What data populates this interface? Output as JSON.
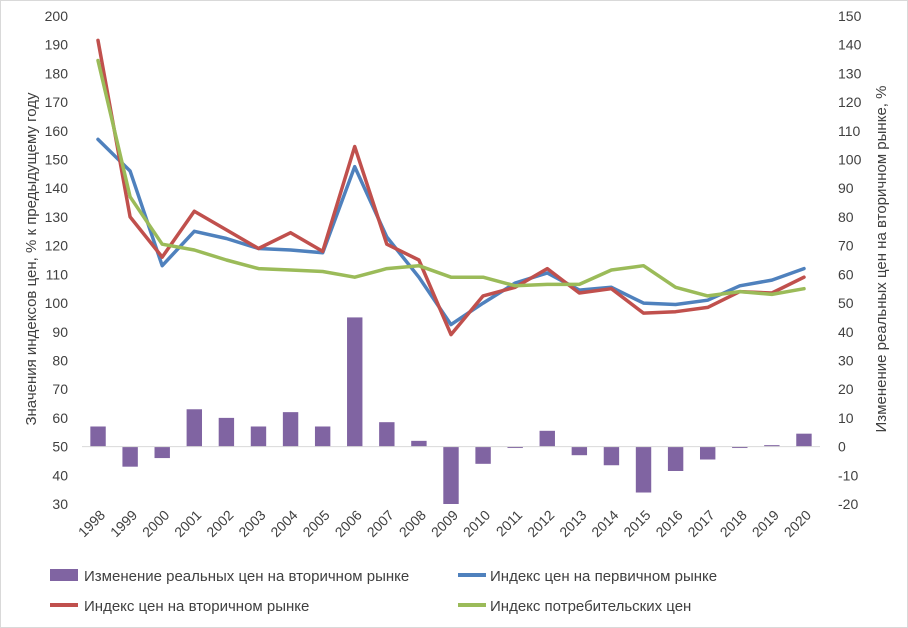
{
  "chart_data": {
    "type": "bar+line",
    "title": "",
    "x": [
      "1998",
      "1999",
      "2000",
      "2001",
      "2002",
      "2003",
      "2004",
      "2005",
      "2006",
      "2007",
      "2008",
      "2009",
      "2010",
      "2011",
      "2012",
      "2013",
      "2014",
      "2015",
      "2016",
      "2017",
      "2018",
      "2019",
      "2020"
    ],
    "y_left": {
      "label": "Значения индексов цен, % к предыдущему году",
      "min": 30,
      "max": 200,
      "step": 10
    },
    "y_right": {
      "label": "Изменение реальных цен на вторичном рынке, %",
      "min": -20,
      "max": 150,
      "step": 10
    },
    "grid": false,
    "legend_position": "bottom",
    "series": [
      {
        "name": "Изменение реальных цен на вторичном рынке",
        "type": "bar",
        "axis": "right",
        "color": "#8064a2",
        "values": [
          7,
          -7,
          -4,
          13,
          10,
          7,
          12,
          7,
          45,
          8.5,
          2,
          -20,
          -6,
          -0.5,
          5.5,
          -3,
          -6.5,
          -16,
          -8.5,
          -4.5,
          -0.5,
          0.5,
          4.5
        ]
      },
      {
        "name": "Индекс цен на первичном рынке",
        "type": "line",
        "axis": "left",
        "color": "#4f81bd",
        "values": [
          157,
          146,
          113,
          125,
          122.5,
          119,
          118.5,
          117.5,
          147.5,
          123,
          109,
          92.5,
          100,
          107,
          110.5,
          104.5,
          105.5,
          100,
          99.5,
          101,
          106,
          108,
          112
        ]
      },
      {
        "name": "Индекс цен на вторичном рынке",
        "type": "line",
        "axis": "left",
        "color": "#c0504d",
        "values": [
          191.5,
          130,
          116,
          132,
          125.5,
          119,
          124.5,
          118,
          154.5,
          120.5,
          115,
          89,
          102.5,
          105.5,
          112,
          103.5,
          105,
          96.5,
          97,
          98.5,
          104,
          103.5,
          109
        ]
      },
      {
        "name": "Индекс потребительских цен",
        "type": "line",
        "axis": "left",
        "color": "#9bbb59",
        "values": [
          184.5,
          137,
          120.5,
          118.5,
          115,
          112,
          111.5,
          111,
          109,
          112,
          113,
          109,
          109,
          106,
          106.5,
          106.5,
          111.5,
          113,
          105.5,
          102.5,
          104,
          103,
          105
        ]
      }
    ]
  }
}
